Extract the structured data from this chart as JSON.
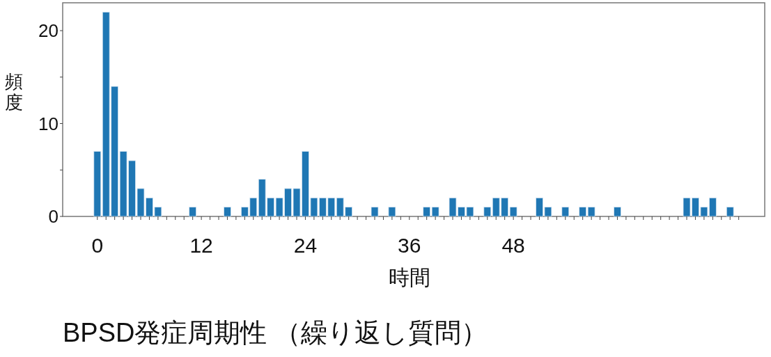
{
  "chart_data": {
    "type": "bar",
    "title": "BPSD発症周期性 （繰り返し質問）",
    "xlabel": "時間",
    "ylabel": "頻度",
    "color": "#1f77b4",
    "x": [
      0,
      1,
      2,
      3,
      4,
      5,
      6,
      7,
      11,
      15,
      17,
      18,
      19,
      20,
      21,
      22,
      23,
      24,
      25,
      26,
      27,
      28,
      29,
      32,
      34,
      38,
      39,
      41,
      42,
      43,
      45,
      46,
      47,
      48,
      51,
      52,
      54,
      56,
      57,
      60,
      68,
      69,
      70,
      71,
      73
    ],
    "values": [
      7,
      22,
      14,
      7,
      6,
      3,
      2,
      1,
      1,
      1,
      1,
      2,
      4,
      2,
      2,
      3,
      3,
      7,
      2,
      2,
      2,
      2,
      1,
      1,
      1,
      1,
      1,
      2,
      1,
      1,
      1,
      2,
      2,
      1,
      2,
      1,
      1,
      1,
      1,
      1,
      2,
      2,
      1,
      2,
      1
    ],
    "xlim": [
      -4,
      77
    ],
    "ylim": [
      0,
      23
    ],
    "xticks": [
      0,
      {
        "value": 1,
        "label": null
      },
      {
        "value": 2,
        "label": null
      },
      {
        "value": 3,
        "label": null
      },
      {
        "value": 4,
        "label": null
      },
      {
        "value": 5,
        "label": null
      },
      {
        "value": 6,
        "label": null
      },
      {
        "value": 7,
        "label": null
      },
      {
        "value": 8,
        "label": null
      },
      {
        "value": 9,
        "label": null
      },
      {
        "value": 10,
        "label": null
      },
      {
        "value": 11,
        "label": null
      },
      12,
      {
        "value": 13,
        "label": null
      },
      {
        "value": 14,
        "label": null
      },
      {
        "value": 15,
        "label": null
      },
      {
        "value": 16,
        "label": null
      },
      {
        "value": 17,
        "label": null
      },
      {
        "value": 18,
        "label": null
      },
      {
        "value": 19,
        "label": null
      },
      {
        "value": 20,
        "label": null
      },
      {
        "value": 21,
        "label": null
      },
      {
        "value": 22,
        "label": null
      },
      {
        "value": 23,
        "label": null
      },
      24,
      {
        "value": 25,
        "label": null
      },
      {
        "value": 26,
        "label": null
      },
      {
        "value": 27,
        "label": null
      },
      {
        "value": 28,
        "label": null
      },
      {
        "value": 29,
        "label": null
      },
      {
        "value": 30,
        "label": null
      },
      {
        "value": 31,
        "label": null
      },
      {
        "value": 32,
        "label": null
      },
      {
        "value": 33,
        "label": null
      },
      {
        "value": 34,
        "label": null
      },
      {
        "value": 35,
        "label": null
      },
      36,
      {
        "value": 37,
        "label": null
      },
      {
        "value": 38,
        "label": null
      },
      {
        "value": 39,
        "label": null
      },
      {
        "value": 40,
        "label": null
      },
      {
        "value": 41,
        "label": null
      },
      {
        "value": 42,
        "label": null
      },
      {
        "value": 43,
        "label": null
      },
      {
        "value": 44,
        "label": null
      },
      {
        "value": 45,
        "label": null
      },
      {
        "value": 46,
        "label": null
      },
      {
        "value": 47,
        "label": null
      },
      48,
      {
        "value": 49,
        "label": null
      },
      {
        "value": 50,
        "label": null
      },
      {
        "value": 51,
        "label": null
      },
      {
        "value": 52,
        "label": null
      },
      {
        "value": 53,
        "label": null
      },
      {
        "value": 54,
        "label": null
      },
      {
        "value": 55,
        "label": null
      },
      {
        "value": 56,
        "label": null
      },
      {
        "value": 57,
        "label": null
      },
      {
        "value": 58,
        "label": null
      },
      {
        "value": 59,
        "label": null
      },
      {
        "value": 60,
        "label": null
      },
      {
        "value": 61,
        "label": null
      },
      {
        "value": 62,
        "label": null
      },
      {
        "value": 63,
        "label": null
      },
      {
        "value": 64,
        "label": null
      },
      {
        "value": 65,
        "label": null
      },
      {
        "value": 66,
        "label": null
      },
      {
        "value": 67,
        "label": null
      },
      {
        "value": 68,
        "label": null
      },
      {
        "value": 69,
        "label": null
      },
      {
        "value": 70,
        "label": null
      },
      {
        "value": 71,
        "label": null
      },
      {
        "value": 72,
        "label": null
      },
      {
        "value": 73,
        "label": null
      },
      {
        "value": 74,
        "label": null
      }
    ],
    "yticks": [
      0,
      {
        "value": 5,
        "label": null
      },
      10,
      {
        "value": 15,
        "label": null
      },
      20
    ],
    "grid": false
  }
}
